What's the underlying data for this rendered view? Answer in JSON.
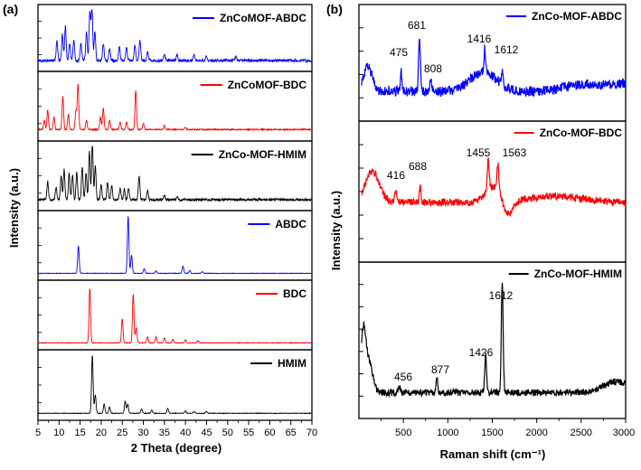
{
  "chart_data": [
    {
      "panel_label": "(a)",
      "type": "line",
      "xlabel": "2 Theta (degree)",
      "ylabel": "Intensity (a.u.)",
      "xlim": [
        5,
        70
      ],
      "xticks": [
        5,
        10,
        15,
        20,
        25,
        30,
        35,
        40,
        45,
        50,
        55,
        60,
        65,
        70
      ],
      "legend_position": "top-right of each stacked sub-panel",
      "series": [
        {
          "name": "ZnCoMOF-ABDC",
          "color": "#0000ff",
          "baseline": 0.1,
          "noise": 0.05,
          "peaks": [
            [
              9.5,
              0.35
            ],
            [
              10.8,
              0.45
            ],
            [
              11.5,
              0.6
            ],
            [
              12.5,
              0.3
            ],
            [
              13.5,
              0.35
            ],
            [
              15.2,
              0.3
            ],
            [
              16.5,
              0.5
            ],
            [
              17.3,
              0.85
            ],
            [
              17.8,
              0.95
            ],
            [
              18.5,
              0.5
            ],
            [
              20.5,
              0.3
            ],
            [
              22,
              0.22
            ],
            [
              24.3,
              0.25
            ],
            [
              26,
              0.22
            ],
            [
              28,
              0.25
            ],
            [
              29.2,
              0.35
            ],
            [
              31,
              0.15
            ],
            [
              35,
              0.12
            ],
            [
              38,
              0.1
            ],
            [
              42,
              0.1
            ],
            [
              45,
              0.08
            ],
            [
              52,
              0.08
            ]
          ]
        },
        {
          "name": "ZnCoMOF-BDC",
          "color": "#ff0000",
          "baseline": 0.12,
          "noise": 0.02,
          "peaks": [
            [
              6.5,
              0.15
            ],
            [
              7.3,
              0.32
            ],
            [
              8.8,
              0.2
            ],
            [
              10.9,
              0.55
            ],
            [
              12.2,
              0.25
            ],
            [
              14,
              0.3
            ],
            [
              14.5,
              0.75
            ],
            [
              16.5,
              0.15
            ],
            [
              19.8,
              0.2
            ],
            [
              20.5,
              0.35
            ],
            [
              22,
              0.15
            ],
            [
              24.5,
              0.12
            ],
            [
              26,
              0.12
            ],
            [
              28.2,
              0.65
            ],
            [
              30,
              0.1
            ],
            [
              35,
              0.06
            ],
            [
              40,
              0.04
            ]
          ]
        },
        {
          "name": "ZnCo-MOF-HMIM",
          "color": "#000000",
          "baseline": 0.1,
          "noise": 0.04,
          "peaks": [
            [
              7.3,
              0.3
            ],
            [
              9.3,
              0.2
            ],
            [
              10.5,
              0.4
            ],
            [
              11.2,
              0.5
            ],
            [
              12.4,
              0.45
            ],
            [
              13.2,
              0.4
            ],
            [
              14.2,
              0.45
            ],
            [
              15.5,
              0.55
            ],
            [
              16.4,
              0.45
            ],
            [
              17.2,
              0.8
            ],
            [
              17.9,
              0.95
            ],
            [
              18.6,
              0.55
            ],
            [
              20,
              0.25
            ],
            [
              21.5,
              0.3
            ],
            [
              22.5,
              0.25
            ],
            [
              24.5,
              0.2
            ],
            [
              25.5,
              0.18
            ],
            [
              26.5,
              0.2
            ],
            [
              29,
              0.4
            ],
            [
              31,
              0.15
            ],
            [
              35,
              0.08
            ],
            [
              38,
              0.06
            ]
          ]
        },
        {
          "name": "ABDC",
          "color": "#0000ff",
          "baseline": 0.05,
          "noise": 0.008,
          "peaks": [
            [
              14.6,
              0.45
            ],
            [
              26.4,
              0.95
            ],
            [
              27.2,
              0.3
            ],
            [
              30.2,
              0.08
            ],
            [
              33,
              0.04
            ],
            [
              39.4,
              0.12
            ],
            [
              41,
              0.05
            ],
            [
              44,
              0.03
            ]
          ]
        },
        {
          "name": "BDC",
          "color": "#ff0000",
          "baseline": 0.05,
          "noise": 0.01,
          "peaks": [
            [
              17.3,
              0.9
            ],
            [
              25,
              0.4
            ],
            [
              27.6,
              0.8
            ],
            [
              28.3,
              0.25
            ],
            [
              31,
              0.1
            ],
            [
              33,
              0.1
            ],
            [
              35,
              0.08
            ],
            [
              37,
              0.06
            ],
            [
              40,
              0.05
            ],
            [
              43,
              0.04
            ]
          ]
        },
        {
          "name": "HMIM",
          "color": "#000000",
          "baseline": 0.05,
          "noise": 0.01,
          "peaks": [
            [
              17.9,
              0.95
            ],
            [
              18.6,
              0.3
            ],
            [
              20.7,
              0.15
            ],
            [
              22,
              0.1
            ],
            [
              25.7,
              0.2
            ],
            [
              26.3,
              0.15
            ],
            [
              29.6,
              0.07
            ],
            [
              32,
              0.05
            ],
            [
              35.8,
              0.08
            ],
            [
              40,
              0.04
            ],
            [
              42,
              0.03
            ],
            [
              45,
              0.03
            ]
          ]
        }
      ]
    },
    {
      "panel_label": "(b)",
      "type": "line",
      "xlabel": "Raman shift (cm⁻¹)",
      "ylabel": "Intensity (a.u.)",
      "xlim": [
        0,
        3000
      ],
      "xticks": [
        500,
        1000,
        1500,
        2000,
        2500,
        3000
      ],
      "legend_position": "top-right of each stacked sub-panel",
      "series": [
        {
          "name": "ZnCo-MOF-ABDC",
          "color": "#0000ff",
          "noise": 0.05,
          "annotations": [
            "475",
            "681",
            "808",
            "1416",
            "1612"
          ],
          "peaks": [
            [
              475,
              0.2
            ],
            [
              681,
              0.55
            ],
            [
              808,
              0.12
            ],
            [
              1416,
              0.25
            ],
            [
              1612,
              0.12
            ]
          ],
          "broad": [
            [
              100,
              50,
              0.25
            ],
            [
              1400,
              150,
              0.2
            ],
            [
              2600,
              250,
              0.08
            ],
            [
              3000,
              120,
              0.06
            ]
          ]
        },
        {
          "name": "ZnCo-MOF-BDC",
          "color": "#ff0000",
          "noise": 0.03,
          "annotations": [
            "416",
            "688",
            "1455",
            "1563"
          ],
          "peaks": [
            [
              416,
              0.1
            ],
            [
              688,
              0.12
            ],
            [
              1455,
              0.25
            ],
            [
              1563,
              0.22
            ]
          ],
          "broad": [
            [
              150,
              80,
              0.25
            ],
            [
              1500,
              80,
              0.12
            ],
            [
              2200,
              300,
              0.05
            ]
          ]
        },
        {
          "name": "ZnCo-MOF-HMIM",
          "color": "#000000",
          "noise": 0.025,
          "annotations": [
            "456",
            "877",
            "1426",
            "1612"
          ],
          "peaks": [
            [
              456,
              0.04
            ],
            [
              877,
              0.12
            ],
            [
              1426,
              0.3
            ],
            [
              1612,
              0.82
            ]
          ],
          "broad": [
            [
              50,
              30,
              0.45
            ],
            [
              120,
              40,
              0.2
            ],
            [
              2900,
              150,
              0.08
            ]
          ]
        }
      ]
    }
  ]
}
